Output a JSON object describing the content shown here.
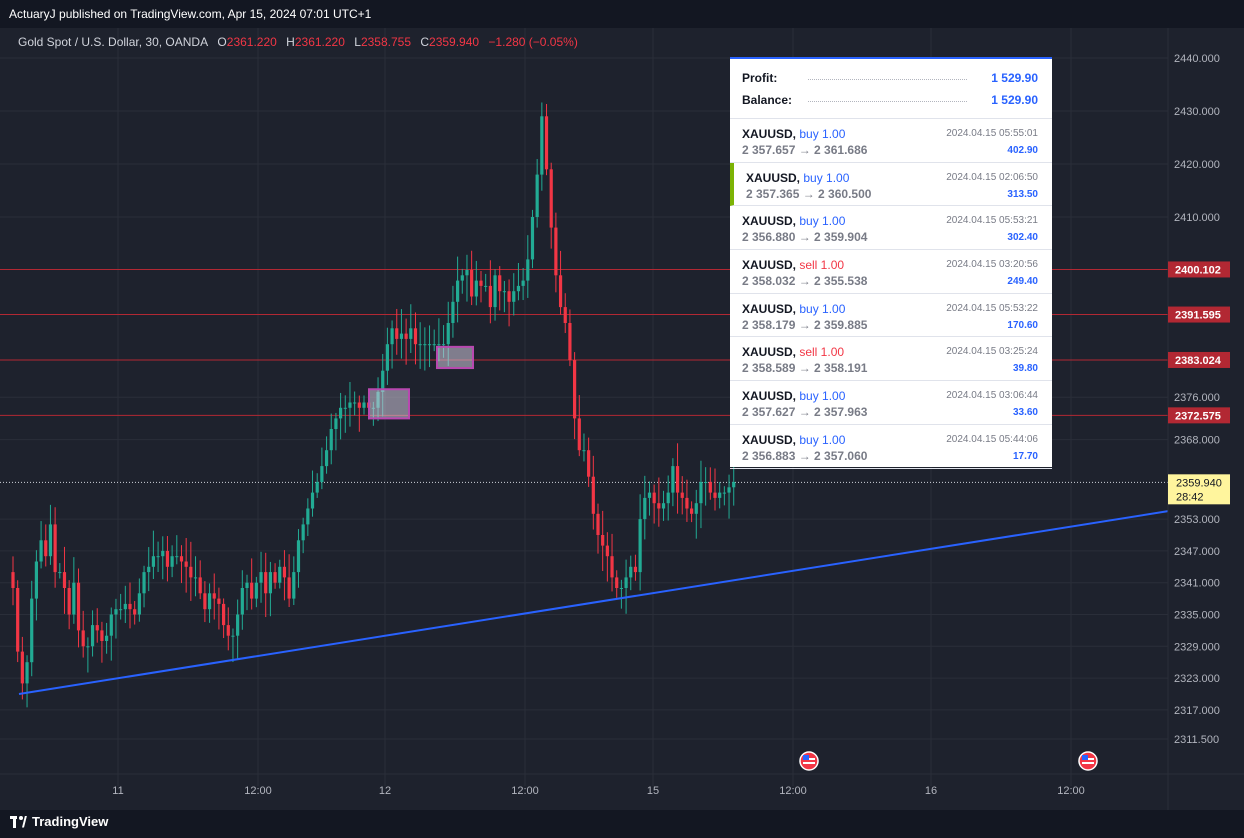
{
  "header": {
    "published": "ActuaryJ published on TradingView.com, Apr 15, 2024 07:01 UTC+1"
  },
  "legend": {
    "symbol": "Gold Spot / U.S. Dollar, 30, OANDA",
    "o_label": "O",
    "o": "2361.220",
    "h_label": "H",
    "h": "2361.220",
    "l_label": "L",
    "l": "2358.755",
    "c_label": "C",
    "c": "2359.940",
    "change": "−1.280 (−0.05%)"
  },
  "footer": {
    "brand": "TradingView"
  },
  "colors": {
    "up": "#22ab94",
    "down": "#f23645",
    "trendline": "#2962ff",
    "level_line": "#b22833",
    "level_badge": "#b22833",
    "box": "#b848b0",
    "last_price_bg": "#fff59d"
  },
  "positions_panel": {
    "profit_label": "Profit:",
    "profit": "1 529.90",
    "balance_label": "Balance:",
    "balance": "1 529.90",
    "trades": [
      {
        "symbol": "XAUUSD",
        "side": "buy",
        "qty": "buy 1.00",
        "prices": "2 357.657 → 2 361.686",
        "time": "2024.04.15 05:55:01",
        "profit": "402.90",
        "active": false
      },
      {
        "symbol": "XAUUSD",
        "side": "buy",
        "qty": "buy 1.00",
        "prices": "2 357.365 → 2 360.500",
        "time": "2024.04.15 02:06:50",
        "profit": "313.50",
        "active": true
      },
      {
        "symbol": "XAUUSD",
        "side": "buy",
        "qty": "buy 1.00",
        "prices": "2 356.880 → 2 359.904",
        "time": "2024.04.15 05:53:21",
        "profit": "302.40",
        "active": false
      },
      {
        "symbol": "XAUUSD",
        "side": "sell",
        "qty": "sell 1.00",
        "prices": "2 358.032 → 2 355.538",
        "time": "2024.04.15 03:20:56",
        "profit": "249.40",
        "active": false
      },
      {
        "symbol": "XAUUSD",
        "side": "buy",
        "qty": "buy 1.00",
        "prices": "2 358.179 → 2 359.885",
        "time": "2024.04.15 05:53:22",
        "profit": "170.60",
        "active": false
      },
      {
        "symbol": "XAUUSD",
        "side": "sell",
        "qty": "sell 1.00",
        "prices": "2 358.589 → 2 358.191",
        "time": "2024.04.15 03:25:24",
        "profit": "39.80",
        "active": false
      },
      {
        "symbol": "XAUUSD",
        "side": "buy",
        "qty": "buy 1.00",
        "prices": "2 357.627 → 2 357.963",
        "time": "2024.04.15 03:06:44",
        "profit": "33.60",
        "active": false
      },
      {
        "symbol": "XAUUSD",
        "side": "buy",
        "qty": "buy 1.00",
        "prices": "2 356.883 → 2 357.060",
        "time": "2024.04.15 05:44:06",
        "profit": "17.70",
        "active": false
      }
    ]
  },
  "chart_data": {
    "type": "candlestick",
    "symbol": "XAUUSD",
    "timeframe": "30",
    "ylim": [
      2308,
      2444
    ],
    "y_ticks": [
      "2440.000",
      "2430.000",
      "2420.000",
      "2410.000",
      "2400.102",
      "2391.595",
      "2383.024",
      "2376.000",
      "2372.575",
      "2368.000",
      "2359.940",
      "2353.000",
      "2347.000",
      "2341.000",
      "2335.000",
      "2329.000",
      "2323.000",
      "2317.000",
      "2311.500"
    ],
    "y_ticks_plain": [
      2440,
      2430,
      2420,
      2410,
      2376,
      2368,
      2353,
      2347,
      2341,
      2335,
      2329,
      2323,
      2317,
      2311.5
    ],
    "x_ticks": [
      "11",
      "12:00",
      "12",
      "12:00",
      "15",
      "12:00",
      "16",
      "12:00"
    ],
    "horizontal_levels": [
      {
        "price": 2400.102,
        "label": "2400.102"
      },
      {
        "price": 2391.595,
        "label": "2391.595"
      },
      {
        "price": 2383.024,
        "label": "2383.024"
      },
      {
        "price": 2372.575,
        "label": "2372.575"
      }
    ],
    "last_price": {
      "price": 2359.94,
      "label": "2359.940",
      "countdown": "28:42"
    },
    "trendline": {
      "from": {
        "bar": 1,
        "price": 2320
      },
      "to": {
        "bar": 190,
        "price": 2354.5
      }
    },
    "event_markers": [
      "flag-us",
      "flag-us"
    ],
    "closes": [
      2340,
      2328,
      2322,
      2326,
      2338,
      2345,
      2349,
      2346,
      2352,
      2343,
      2343,
      2340,
      2335,
      2341,
      2332,
      2329,
      2329,
      2333,
      2332,
      2330,
      2331,
      2335,
      2336,
      2336,
      2337,
      2336,
      2335,
      2339,
      2343,
      2344,
      2346,
      2346,
      2347,
      2344,
      2346,
      2346,
      2345,
      2344,
      2342,
      2342,
      2339,
      2336,
      2339,
      2338,
      2337,
      2333,
      2331,
      2331,
      2335,
      2340,
      2341,
      2338,
      2341,
      2343,
      2339,
      2343,
      2341,
      2344,
      2342,
      2338,
      2343,
      2349,
      2352,
      2355,
      2358,
      2360,
      2363,
      2366,
      2370,
      2372,
      2374,
      2374,
      2375,
      2375,
      2374,
      2375,
      2374,
      2374,
      2377,
      2381,
      2386,
      2389,
      2387,
      2388,
      2387,
      2389,
      2386,
      2386,
      2386,
      2386,
      2386,
      2386,
      2386,
      2390,
      2394,
      2398,
      2399,
      2400,
      2395,
      2398,
      2397,
      2397,
      2393,
      2399,
      2396,
      2396,
      2394,
      2396,
      2397,
      2398,
      2402,
      2410,
      2418,
      2429,
      2419,
      2408,
      2399,
      2393,
      2390,
      2383,
      2372,
      2366,
      2366,
      2361,
      2354,
      2350,
      2348,
      2346,
      2342,
      2340,
      2340,
      2342,
      2344,
      2343,
      2353,
      2357,
      2358,
      2356,
      2355,
      2356,
      2358,
      2363,
      2358,
      2357,
      2355,
      2354,
      2356,
      2360,
      2360,
      2358,
      2357,
      2358,
      2358,
      2359,
      2360
    ]
  }
}
